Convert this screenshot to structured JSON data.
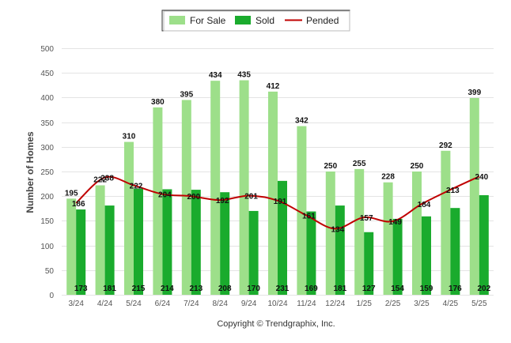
{
  "chart_data": {
    "type": "bar",
    "ylabel": "Number of Homes",
    "ylim": [
      0,
      500
    ],
    "yticks": [
      0,
      50,
      100,
      150,
      200,
      250,
      300,
      350,
      400,
      450,
      500
    ],
    "categories": [
      "3/24",
      "4/24",
      "5/24",
      "6/24",
      "7/24",
      "8/24",
      "9/24",
      "10/24",
      "11/24",
      "12/24",
      "1/25",
      "2/25",
      "3/25",
      "4/25",
      "5/25"
    ],
    "series": [
      {
        "name": "For Sale",
        "kind": "bar",
        "color": "#9ddf8a",
        "values": [
          195,
          222,
          310,
          380,
          395,
          434,
          435,
          412,
          342,
          250,
          255,
          228,
          250,
          292,
          399
        ]
      },
      {
        "name": "Sold",
        "kind": "bar",
        "color": "#1aab2d",
        "values": [
          173,
          181,
          215,
          214,
          213,
          208,
          170,
          231,
          169,
          181,
          127,
          154,
          159,
          176,
          202
        ]
      },
      {
        "name": "Pended",
        "kind": "line",
        "color": "#c00000",
        "values": [
          186,
          238,
          222,
          204,
          200,
          192,
          201,
          191,
          161,
          134,
          157,
          149,
          184,
          213,
          240
        ]
      }
    ],
    "legend_position": "top-center",
    "grid": true
  },
  "footer": {
    "copyright": "Copyright © Trendgraphix, Inc."
  }
}
